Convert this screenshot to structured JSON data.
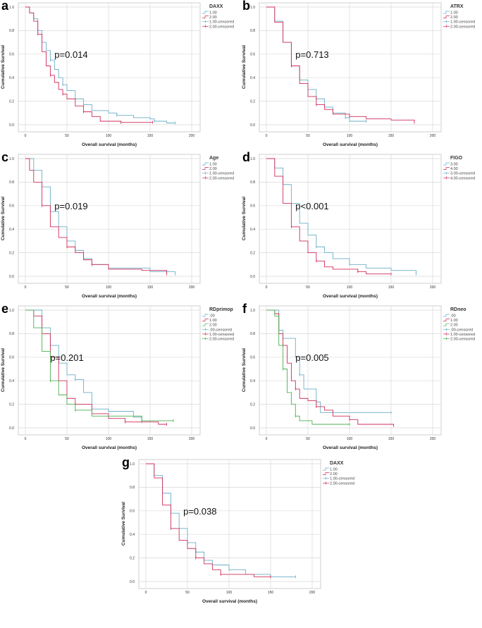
{
  "colors": {
    "s0": "#6aaec6",
    "s1": "#cf2d5a",
    "s2": "#4caf50"
  },
  "chart_data": [
    {
      "type": "line",
      "panel": "a",
      "legend_title": "DAXX",
      "p_value": "p=0.014",
      "xlabel": "Overall survival (months)",
      "ylabel": "Cumulative Survival",
      "xlim": [
        0,
        200
      ],
      "ylim": [
        0,
        1
      ],
      "xticks": [
        "0",
        "50",
        "100",
        "150",
        "200"
      ],
      "yticks": [
        "0.0",
        "0.2",
        "0.4",
        "0.6",
        "0.8",
        "1.0"
      ],
      "legend": [
        "1.00",
        "2.00",
        "1.00-censored",
        "2.00-censored"
      ],
      "series": [
        {
          "name": "1.00",
          "points": [
            [
              0,
              1
            ],
            [
              5,
              0.95
            ],
            [
              10,
              0.9
            ],
            [
              15,
              0.8
            ],
            [
              20,
              0.7
            ],
            [
              25,
              0.63
            ],
            [
              30,
              0.55
            ],
            [
              35,
              0.47
            ],
            [
              40,
              0.4
            ],
            [
              45,
              0.34
            ],
            [
              50,
              0.29
            ],
            [
              60,
              0.22
            ],
            [
              70,
              0.17
            ],
            [
              80,
              0.12
            ],
            [
              100,
              0.1
            ],
            [
              110,
              0.08
            ],
            [
              130,
              0.06
            ],
            [
              150,
              0.05
            ],
            [
              155,
              0.03
            ],
            [
              170,
              0.015
            ],
            [
              180,
              0.015
            ]
          ]
        },
        {
          "name": "2.00",
          "points": [
            [
              0,
              1
            ],
            [
              5,
              0.95
            ],
            [
              10,
              0.88
            ],
            [
              15,
              0.77
            ],
            [
              20,
              0.62
            ],
            [
              25,
              0.5
            ],
            [
              30,
              0.42
            ],
            [
              35,
              0.36
            ],
            [
              40,
              0.3
            ],
            [
              45,
              0.26
            ],
            [
              50,
              0.22
            ],
            [
              60,
              0.16
            ],
            [
              70,
              0.11
            ],
            [
              80,
              0.07
            ],
            [
              90,
              0.03
            ],
            [
              115,
              0.02
            ],
            [
              153,
              0.02
            ]
          ]
        }
      ]
    },
    {
      "type": "line",
      "panel": "b",
      "legend_title": "ATRX",
      "p_value": "p=0.713",
      "xlabel": "Overall survival (months)",
      "ylabel": "Cumulative Survival",
      "xlim": [
        0,
        200
      ],
      "ylim": [
        0,
        1
      ],
      "xticks": [
        "0",
        "50",
        "100",
        "150",
        "200"
      ],
      "yticks": [
        "0.0",
        "0.2",
        "0.4",
        "0.6",
        "0.8",
        "1.0"
      ],
      "legend": [
        "1.00",
        "2.00",
        "1.00-censored",
        "2.00-censored"
      ],
      "series": [
        {
          "name": "1.00",
          "points": [
            [
              0,
              1
            ],
            [
              10,
              0.88
            ],
            [
              20,
              0.7
            ],
            [
              30,
              0.5
            ],
            [
              40,
              0.38
            ],
            [
              50,
              0.3
            ],
            [
              60,
              0.22
            ],
            [
              70,
              0.15
            ],
            [
              80,
              0.1
            ],
            [
              95,
              0.06
            ],
            [
              100,
              0.03
            ],
            [
              120,
              0.03
            ]
          ]
        },
        {
          "name": "2.00",
          "points": [
            [
              0,
              1
            ],
            [
              10,
              0.87
            ],
            [
              20,
              0.7
            ],
            [
              30,
              0.5
            ],
            [
              40,
              0.35
            ],
            [
              50,
              0.24
            ],
            [
              60,
              0.17
            ],
            [
              70,
              0.13
            ],
            [
              80,
              0.09
            ],
            [
              100,
              0.07
            ],
            [
              120,
              0.05
            ],
            [
              150,
              0.04
            ],
            [
              178,
              0.02
            ]
          ]
        }
      ]
    },
    {
      "type": "line",
      "panel": "c",
      "legend_title": "Age",
      "p_value": "p=0.019",
      "xlabel": "Overall survival (months)",
      "ylabel": "Cumulative Survival",
      "xlim": [
        0,
        200
      ],
      "ylim": [
        0,
        1
      ],
      "xticks": [
        "0",
        "50",
        "100",
        "150",
        "200"
      ],
      "yticks": [
        "0.0",
        "0.2",
        "0.4",
        "0.6",
        "0.8",
        "1.0"
      ],
      "legend": [
        "1.00",
        "2.00",
        "1.00-censored",
        "2.00-censored"
      ],
      "series": [
        {
          "name": "1.00",
          "points": [
            [
              0,
              1
            ],
            [
              5,
              1
            ],
            [
              10,
              0.9
            ],
            [
              20,
              0.76
            ],
            [
              30,
              0.55
            ],
            [
              40,
              0.42
            ],
            [
              50,
              0.3
            ],
            [
              60,
              0.22
            ],
            [
              70,
              0.15
            ],
            [
              80,
              0.1
            ],
            [
              100,
              0.07
            ],
            [
              150,
              0.04
            ],
            [
              180,
              0.02
            ]
          ]
        },
        {
          "name": "2.00",
          "points": [
            [
              0,
              1
            ],
            [
              5,
              0.9
            ],
            [
              10,
              0.8
            ],
            [
              20,
              0.6
            ],
            [
              30,
              0.42
            ],
            [
              40,
              0.33
            ],
            [
              50,
              0.25
            ],
            [
              60,
              0.2
            ],
            [
              70,
              0.14
            ],
            [
              80,
              0.1
            ],
            [
              100,
              0.06
            ],
            [
              140,
              0.05
            ],
            [
              170,
              0.02
            ]
          ]
        }
      ]
    },
    {
      "type": "line",
      "panel": "d",
      "legend_title": "FIGO",
      "p_value": "p<0.001",
      "xlabel": "Overall survival (months)",
      "ylabel": "Cumulative Survival",
      "xlim": [
        0,
        200
      ],
      "ylim": [
        0,
        1
      ],
      "xticks": [
        "0",
        "50",
        "100",
        "150",
        "200"
      ],
      "yticks": [
        "0.0",
        "0.2",
        "0.4",
        "0.6",
        "0.8",
        "1.0"
      ],
      "legend": [
        "3.00",
        "4.00",
        "3.00-censored",
        "4.00-censored"
      ],
      "series": [
        {
          "name": "3.00",
          "points": [
            [
              0,
              1
            ],
            [
              10,
              0.92
            ],
            [
              20,
              0.78
            ],
            [
              30,
              0.62
            ],
            [
              40,
              0.45
            ],
            [
              50,
              0.35
            ],
            [
              60,
              0.25
            ],
            [
              70,
              0.2
            ],
            [
              80,
              0.15
            ],
            [
              100,
              0.1
            ],
            [
              120,
              0.07
            ],
            [
              150,
              0.05
            ],
            [
              180,
              0.02
            ]
          ]
        },
        {
          "name": "4.00",
          "points": [
            [
              0,
              1
            ],
            [
              10,
              0.85
            ],
            [
              20,
              0.62
            ],
            [
              30,
              0.42
            ],
            [
              40,
              0.3
            ],
            [
              50,
              0.2
            ],
            [
              60,
              0.13
            ],
            [
              70,
              0.08
            ],
            [
              80,
              0.06
            ],
            [
              110,
              0.04
            ],
            [
              120,
              0.02
            ],
            [
              150,
              0.02
            ]
          ]
        }
      ]
    },
    {
      "type": "line",
      "panel": "e",
      "legend_title": "RDprimop",
      "p_value": "p=0.201",
      "xlabel": "Overall survival (months)",
      "ylabel": "Cumulative Survival",
      "xlim": [
        0,
        200
      ],
      "ylim": [
        0,
        1
      ],
      "xticks": [
        "0",
        "50",
        "100",
        "150",
        "200"
      ],
      "yticks": [
        "0.0",
        "0.2",
        "0.4",
        "0.6",
        "0.8",
        "1.0"
      ],
      "legend": [
        ".00",
        "1.00",
        "2.00",
        ".00-censored",
        "1.00-censored",
        "2.00-censored"
      ],
      "series": [
        {
          "name": ".00",
          "points": [
            [
              0,
              1
            ],
            [
              10,
              1
            ],
            [
              20,
              0.85
            ],
            [
              30,
              0.7
            ],
            [
              40,
              0.55
            ],
            [
              50,
              0.45
            ],
            [
              60,
              0.41
            ],
            [
              70,
              0.3
            ],
            [
              80,
              0.16
            ],
            [
              100,
              0.14
            ],
            [
              130,
              0.09
            ],
            [
              140,
              0.05
            ]
          ]
        },
        {
          "name": "1.00",
          "points": [
            [
              0,
              1
            ],
            [
              10,
              0.95
            ],
            [
              20,
              0.8
            ],
            [
              30,
              0.6
            ],
            [
              40,
              0.4
            ],
            [
              50,
              0.25
            ],
            [
              60,
              0.2
            ],
            [
              80,
              0.12
            ],
            [
              100,
              0.08
            ],
            [
              120,
              0.05
            ],
            [
              160,
              0.03
            ],
            [
              170,
              0.03
            ]
          ]
        },
        {
          "name": "2.00",
          "points": [
            [
              0,
              1
            ],
            [
              10,
              0.85
            ],
            [
              20,
              0.65
            ],
            [
              30,
              0.4
            ],
            [
              40,
              0.28
            ],
            [
              50,
              0.2
            ],
            [
              60,
              0.15
            ],
            [
              80,
              0.1
            ],
            [
              120,
              0.1
            ],
            [
              140,
              0.06
            ],
            [
              178,
              0.06
            ]
          ]
        }
      ]
    },
    {
      "type": "line",
      "panel": "f",
      "legend_title": "RDneo",
      "p_value": "p=0.005",
      "xlabel": "Overall survival (months)",
      "ylabel": "Cumulative Survival",
      "xlim": [
        0,
        200
      ],
      "ylim": [
        0,
        1
      ],
      "xticks": [
        "0",
        "50",
        "100",
        "150",
        "200"
      ],
      "yticks": [
        "0.0",
        "0.2",
        "0.4",
        "0.6",
        "0.8",
        "1.0"
      ],
      "legend": [
        ".00",
        "1.00",
        "2.00",
        ".00-censored",
        "1.00-censored",
        "2.00-censored"
      ],
      "series": [
        {
          "name": ".00",
          "points": [
            [
              0,
              1
            ],
            [
              10,
              1
            ],
            [
              15,
              0.83
            ],
            [
              20,
              0.76
            ],
            [
              30,
              0.76
            ],
            [
              35,
              0.6
            ],
            [
              40,
              0.45
            ],
            [
              45,
              0.33
            ],
            [
              55,
              0.33
            ],
            [
              60,
              0.22
            ],
            [
              65,
              0.13
            ],
            [
              150,
              0.13
            ]
          ]
        },
        {
          "name": "1.00",
          "points": [
            [
              0,
              1
            ],
            [
              10,
              0.97
            ],
            [
              15,
              0.8
            ],
            [
              20,
              0.7
            ],
            [
              25,
              0.55
            ],
            [
              30,
              0.4
            ],
            [
              35,
              0.33
            ],
            [
              40,
              0.25
            ],
            [
              50,
              0.23
            ],
            [
              60,
              0.18
            ],
            [
              70,
              0.15
            ],
            [
              80,
              0.1
            ],
            [
              100,
              0.07
            ],
            [
              110,
              0.03
            ],
            [
              153,
              0.02
            ]
          ]
        },
        {
          "name": "2.00",
          "points": [
            [
              0,
              1
            ],
            [
              10,
              0.95
            ],
            [
              15,
              0.7
            ],
            [
              20,
              0.5
            ],
            [
              25,
              0.3
            ],
            [
              30,
              0.2
            ],
            [
              35,
              0.1
            ],
            [
              40,
              0.06
            ],
            [
              55,
              0.03
            ],
            [
              100,
              0.03
            ]
          ]
        }
      ]
    },
    {
      "type": "line",
      "panel": "g",
      "legend_title": "DAXX",
      "p_value": "p=0.038",
      "xlabel": "Overall survival (months)",
      "ylabel": "Cumulative Survival",
      "xlim": [
        0,
        200
      ],
      "ylim": [
        0,
        1
      ],
      "xticks": [
        "0",
        "50",
        "100",
        "150",
        "200"
      ],
      "yticks": [
        "0.0",
        "0.2",
        "0.4",
        "0.6",
        "0.8",
        "1.0"
      ],
      "legend": [
        "1.00",
        "2.00",
        "1.00-censored",
        "2.00-censored"
      ],
      "series": [
        {
          "name": "1.00",
          "points": [
            [
              0,
              1
            ],
            [
              10,
              0.9
            ],
            [
              20,
              0.75
            ],
            [
              30,
              0.58
            ],
            [
              40,
              0.45
            ],
            [
              50,
              0.33
            ],
            [
              60,
              0.25
            ],
            [
              70,
              0.18
            ],
            [
              80,
              0.14
            ],
            [
              100,
              0.1
            ],
            [
              120,
              0.06
            ],
            [
              150,
              0.04
            ],
            [
              180,
              0.04
            ]
          ]
        },
        {
          "name": "2.00",
          "points": [
            [
              0,
              1
            ],
            [
              10,
              0.88
            ],
            [
              20,
              0.65
            ],
            [
              30,
              0.45
            ],
            [
              40,
              0.35
            ],
            [
              50,
              0.28
            ],
            [
              60,
              0.2
            ],
            [
              70,
              0.15
            ],
            [
              80,
              0.1
            ],
            [
              90,
              0.06
            ],
            [
              130,
              0.04
            ],
            [
              150,
              0.04
            ]
          ]
        }
      ]
    }
  ]
}
